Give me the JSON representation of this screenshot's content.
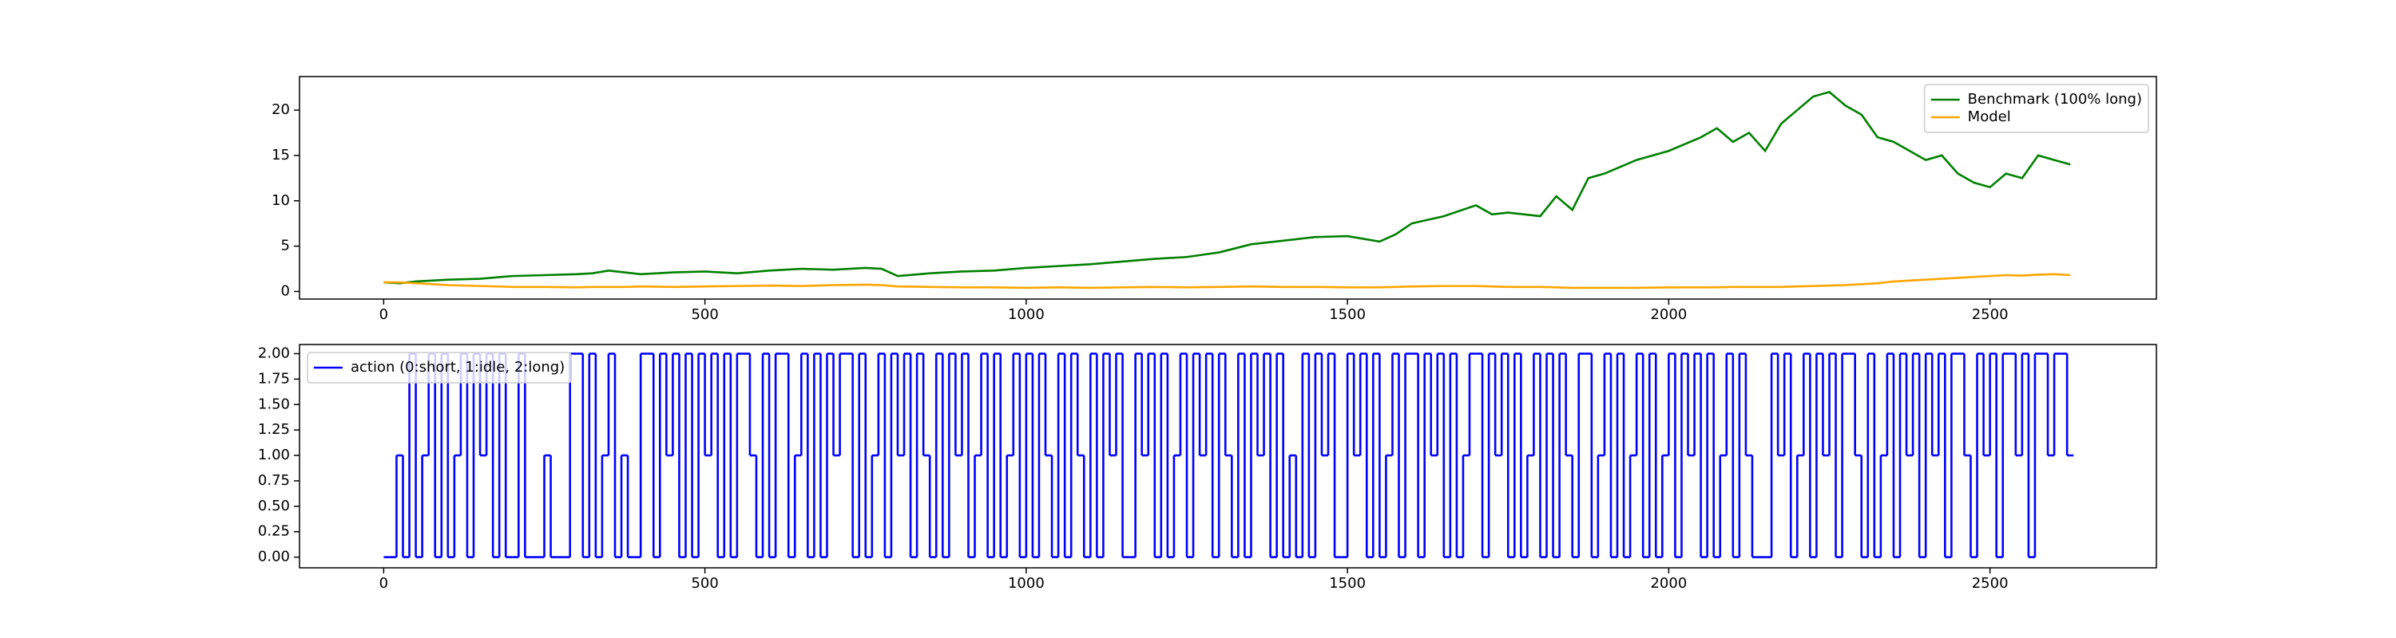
{
  "chart_data": [
    {
      "type": "line",
      "legend": "upper right",
      "x": [
        0,
        25,
        50,
        75,
        100,
        150,
        200,
        250,
        300,
        325,
        350,
        375,
        400,
        450,
        500,
        550,
        600,
        650,
        700,
        750,
        775,
        800,
        850,
        900,
        950,
        1000,
        1050,
        1100,
        1150,
        1200,
        1250,
        1300,
        1350,
        1400,
        1450,
        1500,
        1550,
        1575,
        1600,
        1650,
        1700,
        1725,
        1750,
        1800,
        1825,
        1850,
        1875,
        1900,
        1950,
        2000,
        2050,
        2075,
        2100,
        2125,
        2150,
        2175,
        2200,
        2225,
        2250,
        2275,
        2300,
        2325,
        2350,
        2375,
        2400,
        2425,
        2450,
        2475,
        2500,
        2525,
        2550,
        2575,
        2600,
        2625
      ],
      "series": [
        {
          "name": "Benchmark (100% long)",
          "color": "#008000",
          "values": [
            1,
            0.9,
            1.1,
            1.2,
            1.3,
            1.4,
            1.7,
            1.8,
            1.9,
            2.0,
            2.3,
            2.1,
            1.9,
            2.1,
            2.2,
            2.0,
            2.3,
            2.5,
            2.4,
            2.6,
            2.5,
            1.7,
            2.0,
            2.2,
            2.3,
            2.6,
            2.8,
            3.0,
            3.3,
            3.6,
            3.8,
            4.3,
            5.2,
            5.6,
            6.0,
            6.1,
            5.5,
            6.3,
            7.5,
            8.3,
            9.5,
            8.5,
            8.7,
            8.3,
            10.5,
            9.0,
            12.5,
            13.0,
            14.5,
            15.5,
            17.0,
            18.0,
            16.5,
            17.5,
            15.5,
            18.5,
            20.0,
            21.5,
            22.0,
            20.5,
            19.5,
            17.0,
            16.5,
            15.5,
            14.5,
            15.0,
            13.0,
            12.0,
            11.5,
            13.0,
            12.5,
            15.0,
            14.5,
            14.0
          ]
        },
        {
          "name": "Model",
          "color": "#ffa500",
          "values": [
            1,
            1.0,
            0.9,
            0.8,
            0.7,
            0.6,
            0.5,
            0.5,
            0.45,
            0.5,
            0.5,
            0.5,
            0.55,
            0.5,
            0.55,
            0.6,
            0.65,
            0.6,
            0.7,
            0.75,
            0.7,
            0.55,
            0.5,
            0.45,
            0.45,
            0.4,
            0.45,
            0.4,
            0.45,
            0.5,
            0.45,
            0.5,
            0.55,
            0.5,
            0.5,
            0.45,
            0.45,
            0.5,
            0.55,
            0.6,
            0.6,
            0.55,
            0.5,
            0.5,
            0.45,
            0.4,
            0.4,
            0.4,
            0.4,
            0.45,
            0.45,
            0.45,
            0.5,
            0.5,
            0.5,
            0.5,
            0.55,
            0.6,
            0.65,
            0.7,
            0.8,
            0.9,
            1.1,
            1.2,
            1.3,
            1.4,
            1.5,
            1.6,
            1.7,
            1.8,
            1.75,
            1.85,
            1.9,
            1.8
          ]
        }
      ],
      "xlim": [
        -131,
        2759
      ],
      "xticks": [
        0,
        500,
        1000,
        1500,
        2000,
        2500
      ],
      "ylim": [
        -0.84,
        23.7
      ],
      "yticks": [
        0,
        5,
        10,
        15,
        20
      ]
    },
    {
      "type": "line",
      "legend": "upper left",
      "drawstyle": "steps-post",
      "x": [
        0,
        10,
        20,
        30,
        40,
        50,
        60,
        70,
        80,
        90,
        100,
        110,
        120,
        130,
        140,
        150,
        160,
        170,
        180,
        190,
        200,
        210,
        220,
        230,
        240,
        250,
        260,
        270,
        280,
        290,
        300,
        310,
        320,
        330,
        340,
        350,
        360,
        370,
        380,
        390,
        400,
        410,
        420,
        430,
        440,
        450,
        460,
        470,
        480,
        490,
        500,
        510,
        520,
        530,
        540,
        550,
        560,
        570,
        580,
        590,
        600,
        610,
        620,
        630,
        640,
        650,
        660,
        670,
        680,
        690,
        700,
        710,
        720,
        730,
        740,
        750,
        760,
        770,
        780,
        790,
        800,
        810,
        820,
        830,
        840,
        850,
        860,
        870,
        880,
        890,
        900,
        910,
        920,
        930,
        940,
        950,
        960,
        970,
        980,
        990,
        1000,
        1010,
        1020,
        1030,
        1040,
        1050,
        1060,
        1070,
        1080,
        1090,
        1100,
        1110,
        1120,
        1130,
        1140,
        1150,
        1160,
        1170,
        1180,
        1190,
        1200,
        1210,
        1220,
        1230,
        1240,
        1250,
        1260,
        1270,
        1280,
        1290,
        1300,
        1310,
        1320,
        1330,
        1340,
        1350,
        1360,
        1370,
        1380,
        1390,
        1400,
        1410,
        1420,
        1430,
        1440,
        1450,
        1460,
        1470,
        1480,
        1490,
        1500,
        1510,
        1520,
        1530,
        1540,
        1550,
        1560,
        1570,
        1580,
        1590,
        1600,
        1610,
        1620,
        1630,
        1640,
        1650,
        1660,
        1670,
        1680,
        1690,
        1700,
        1710,
        1720,
        1730,
        1740,
        1750,
        1760,
        1770,
        1780,
        1790,
        1800,
        1810,
        1820,
        1830,
        1840,
        1850,
        1860,
        1870,
        1880,
        1890,
        1900,
        1910,
        1920,
        1930,
        1940,
        1950,
        1960,
        1970,
        1980,
        1990,
        2000,
        2010,
        2020,
        2030,
        2040,
        2050,
        2060,
        2070,
        2080,
        2090,
        2100,
        2110,
        2120,
        2130,
        2140,
        2150,
        2160,
        2170,
        2180,
        2190,
        2200,
        2210,
        2220,
        2230,
        2240,
        2250,
        2260,
        2270,
        2280,
        2290,
        2300,
        2310,
        2320,
        2330,
        2340,
        2350,
        2360,
        2370,
        2380,
        2390,
        2400,
        2410,
        2420,
        2430,
        2440,
        2450,
        2460,
        2470,
        2480,
        2490,
        2500,
        2510,
        2520,
        2530,
        2540,
        2550,
        2560,
        2570,
        2580,
        2590,
        2600,
        2610,
        2620,
        2630
      ],
      "series": [
        {
          "name": "action (0:short, 1:idle, 2:long)",
          "color": "#0000ff",
          "values": [
            0,
            0,
            1,
            0,
            2,
            0,
            1,
            2,
            0,
            2,
            0,
            1,
            2,
            0,
            2,
            1,
            2,
            0,
            2,
            0,
            0,
            2,
            0,
            0,
            0,
            1,
            0,
            0,
            0,
            2,
            2,
            0,
            2,
            0,
            1,
            2,
            0,
            1,
            0,
            0,
            2,
            2,
            0,
            2,
            1,
            2,
            0,
            2,
            0,
            2,
            1,
            2,
            0,
            2,
            0,
            2,
            2,
            1,
            0,
            2,
            0,
            2,
            2,
            0,
            1,
            2,
            0,
            2,
            0,
            2,
            1,
            2,
            2,
            0,
            2,
            0,
            1,
            2,
            0,
            2,
            1,
            2,
            0,
            2,
            1,
            0,
            2,
            0,
            2,
            1,
            2,
            0,
            1,
            2,
            0,
            2,
            0,
            1,
            2,
            0,
            2,
            0,
            2,
            1,
            0,
            2,
            0,
            2,
            1,
            0,
            2,
            0,
            2,
            1,
            2,
            0,
            0,
            2,
            1,
            2,
            0,
            2,
            0,
            1,
            2,
            0,
            2,
            1,
            2,
            0,
            2,
            1,
            0,
            2,
            0,
            2,
            1,
            2,
            0,
            2,
            0,
            1,
            0,
            2,
            0,
            2,
            1,
            2,
            0,
            0,
            2,
            1,
            2,
            0,
            2,
            0,
            1,
            2,
            0,
            2,
            2,
            0,
            2,
            1,
            2,
            0,
            2,
            0,
            1,
            2,
            2,
            0,
            2,
            1,
            2,
            0,
            2,
            0,
            1,
            2,
            0,
            2,
            0,
            2,
            1,
            0,
            2,
            2,
            0,
            1,
            2,
            0,
            2,
            0,
            1,
            2,
            0,
            2,
            0,
            1,
            2,
            0,
            2,
            1,
            2,
            0,
            2,
            0,
            1,
            2,
            0,
            2,
            1,
            0,
            0,
            0,
            2,
            1,
            2,
            0,
            1,
            2,
            0,
            2,
            1,
            2,
            0,
            2,
            2,
            1,
            0,
            2,
            0,
            1,
            2,
            0,
            2,
            1,
            2,
            0,
            2,
            1,
            2,
            0,
            2,
            2,
            1,
            0,
            2,
            1,
            2,
            0,
            2,
            2,
            1,
            2,
            0,
            2,
            2,
            1,
            2,
            2,
            1,
            1
          ]
        }
      ],
      "xlim": [
        -131,
        2759
      ],
      "xticks": [
        0,
        500,
        1000,
        1500,
        2000,
        2500
      ],
      "ylim": [
        -0.105,
        2.09
      ],
      "yticks": [
        {
          "value": 0,
          "label": "0.00"
        },
        {
          "value": 0.25,
          "label": "0.25"
        },
        {
          "value": 0.5,
          "label": "0.50"
        },
        {
          "value": 0.75,
          "label": "0.75"
        },
        {
          "value": 1,
          "label": "1.00"
        },
        {
          "value": 1.25,
          "label": "1.25"
        },
        {
          "value": 1.5,
          "label": "1.50"
        },
        {
          "value": 1.75,
          "label": "1.75"
        },
        {
          "value": 2,
          "label": "2.00"
        }
      ]
    }
  ]
}
